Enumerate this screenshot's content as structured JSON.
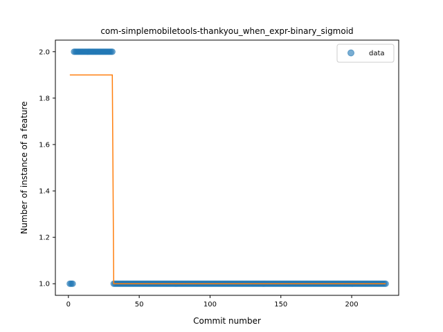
{
  "chart_data": {
    "type": "scatter",
    "title": "com-simplemobiletools-thankyou_when_expr-binary_sigmoid",
    "xlabel": "Commit number",
    "ylabel": "Number of instance of a feature",
    "xlim": [
      -9.2,
      233.2
    ],
    "ylim": [
      0.95,
      2.05
    ],
    "xticks": [
      0,
      50,
      100,
      150,
      200
    ],
    "yticks": [
      1.0,
      1.2,
      1.4,
      1.6,
      1.8,
      2.0
    ],
    "xtick_labels": [
      "0",
      "50",
      "100",
      "150",
      "200"
    ],
    "ytick_labels": [
      "1.0",
      "1.2",
      "1.4",
      "1.6",
      "1.8",
      "2.0"
    ],
    "legend": {
      "position": "top-right",
      "entries": [
        "data"
      ]
    },
    "series": [
      {
        "name": "data",
        "kind": "scatter",
        "color": "#1f77b4",
        "segments": [
          {
            "x_start": 1,
            "x_end": 3,
            "y": 1
          },
          {
            "x_start": 4,
            "x_end": 31,
            "y": 2
          },
          {
            "x_start": 32,
            "x_end": 224,
            "y": 1
          }
        ]
      },
      {
        "kind": "line",
        "color": "#ff7f0e",
        "x": [
          1,
          31,
          32,
          224
        ],
        "y": [
          1.9,
          1.9,
          1.0,
          1.0
        ]
      }
    ]
  }
}
